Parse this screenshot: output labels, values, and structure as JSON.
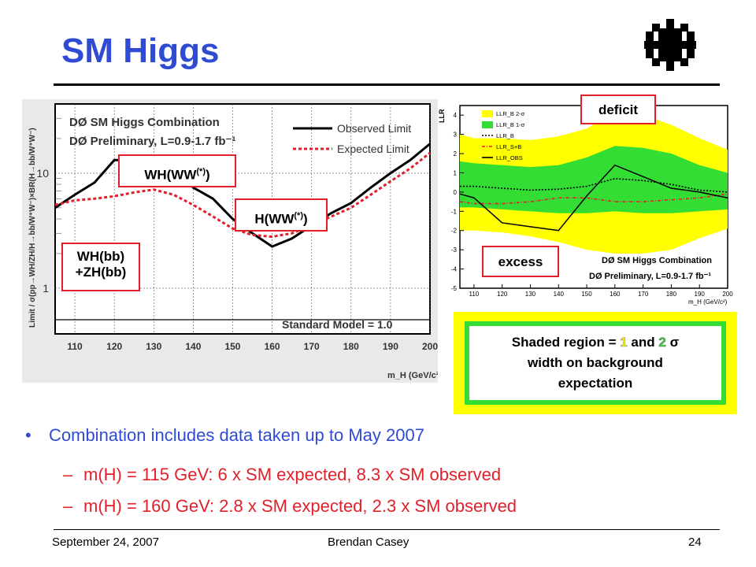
{
  "slide": {
    "title": "SM Higgs",
    "footer": {
      "date": "September 24, 2007",
      "author": "Brendan Casey",
      "page": "24"
    }
  },
  "left_plot": {
    "ylabel": "Limit / σ(pp→WH/ZH/H→bb/W⁺W⁻)×BR(H→bb/W⁺W⁻)",
    "xlabel": "m_H (GeV/c²)",
    "title_line1": "DØ SM Higgs Combination",
    "title_line2": "DØ Preliminary, L=0.9-1.7 fb⁻¹",
    "legend_observed": "Observed Limit",
    "legend_expected": "Expected Limit",
    "sm_label": "Standard Model = 1.0",
    "y_tick_labels": [
      "10",
      "1"
    ],
    "x_tick_labels": [
      "110",
      "120",
      "130",
      "140",
      "150",
      "160",
      "170",
      "180",
      "190",
      "200"
    ]
  },
  "callouts": {
    "wh_ww_main": "WH(WW",
    "wh_ww_sup": "(*)",
    "wh_ww_close": ")",
    "h_ww_main": "H(WW",
    "h_ww_sup": "(*)",
    "h_ww_close": ")",
    "bb_line1": "WH(bb)",
    "bb_line2": "+ZH(bb)",
    "deficit": "deficit",
    "excess": "excess"
  },
  "right_plot": {
    "ylabel": "LLR",
    "title_line1": "DØ SM Higgs Combination",
    "title_line2": "DØ Preliminary, L=0.9-1.7 fb⁻¹",
    "xlabel": "m_H (GeV/c²)",
    "legend": [
      "LLR_B 2-σ",
      "LLR_B 1-σ",
      "LLR_B",
      "LLR_S+B",
      "LLR_OBS"
    ],
    "y_tick_labels": [
      "4",
      "3",
      "2",
      "1",
      "0",
      "-1",
      "-2",
      "-3",
      "-4",
      "-5"
    ],
    "x_tick_labels": [
      "110",
      "120",
      "130",
      "140",
      "150",
      "160",
      "170",
      "180",
      "190",
      "200"
    ]
  },
  "shaded_note": {
    "prefix": "Shaded region = ",
    "num1": "1",
    "mid": " and ",
    "num2": "2",
    "sigma": " σ",
    "line2": "width on background",
    "line3": "expectation"
  },
  "bullets": {
    "main": "Combination includes data taken up to May 2007",
    "dash": "–",
    "sub": [
      "m(H) = 115 GeV:  6 x SM expected, 8.3 x SM observed",
      "m(H) = 160 GeV:  2.8 x SM expected, 2.3 x SM observed"
    ]
  },
  "colors": {
    "title_blue": "#2f4bd4",
    "bullet_red": "#e0212b",
    "yellow_band": "#ffff00",
    "green_band": "#33dd33"
  },
  "chart_data": [
    {
      "type": "line",
      "x": [
        105,
        110,
        115,
        120,
        125,
        130,
        135,
        140,
        145,
        150,
        155,
        160,
        165,
        170,
        175,
        180,
        185,
        190,
        195,
        200
      ],
      "series": [
        {
          "name": "Observed Limit",
          "values": [
            5.0,
            6.5,
            8.3,
            13.0,
            13.0,
            12.5,
            12.0,
            7.5,
            6.0,
            4.0,
            3.0,
            2.3,
            2.7,
            3.5,
            4.5,
            5.5,
            7.5,
            10.0,
            13.0,
            18.0
          ]
        },
        {
          "name": "Expected Limit",
          "values": [
            5.3,
            5.8,
            6.0,
            6.3,
            6.8,
            7.2,
            6.5,
            5.3,
            4.2,
            3.3,
            2.9,
            2.8,
            3.0,
            3.5,
            4.2,
            5.0,
            6.5,
            8.5,
            11.0,
            15.0
          ]
        }
      ],
      "xlim": [
        105,
        200
      ],
      "ylim": [
        0.4,
        40
      ],
      "yscale": "log",
      "grid": true
    },
    {
      "type": "line",
      "x": [
        105,
        110,
        120,
        130,
        140,
        150,
        160,
        170,
        180,
        190,
        200
      ],
      "series": [
        {
          "name": "LLR_B",
          "values": [
            0.3,
            0.3,
            0.2,
            0.1,
            0.15,
            0.3,
            0.7,
            0.6,
            0.4,
            0.1,
            0.0
          ]
        },
        {
          "name": "LLR_S+B",
          "values": [
            -0.5,
            -0.6,
            -0.6,
            -0.5,
            -0.3,
            -0.3,
            -0.5,
            -0.5,
            -0.4,
            -0.3,
            -0.1
          ]
        },
        {
          "name": "LLR_OBS",
          "values": [
            -0.1,
            -0.3,
            -1.6,
            -1.8,
            -2.0,
            -0.2,
            1.4,
            0.8,
            0.2,
            0.0,
            -0.3
          ]
        },
        {
          "name": "LLR_B 1-σ upper",
          "values": [
            1.6,
            1.5,
            1.4,
            1.3,
            1.4,
            1.8,
            2.4,
            2.3,
            2.0,
            1.4,
            1.0
          ]
        },
        {
          "name": "LLR_B 1-σ lower",
          "values": [
            -0.8,
            -0.8,
            -0.9,
            -1.0,
            -1.1,
            -1.1,
            -1.0,
            -1.1,
            -1.1,
            -1.0,
            -0.9
          ]
        },
        {
          "name": "LLR_B 2-σ upper",
          "values": [
            3.0,
            2.8,
            2.8,
            2.7,
            2.9,
            3.3,
            4.2,
            4.0,
            3.5,
            2.8,
            2.2
          ]
        },
        {
          "name": "LLR_B 2-σ lower",
          "values": [
            -2.0,
            -2.0,
            -2.1,
            -2.3,
            -2.6,
            -3.0,
            -3.2,
            -3.2,
            -3.0,
            -2.4,
            -1.9
          ]
        }
      ],
      "xlim": [
        105,
        200
      ],
      "ylim": [
        -5,
        4.5
      ],
      "grid": false
    }
  ]
}
